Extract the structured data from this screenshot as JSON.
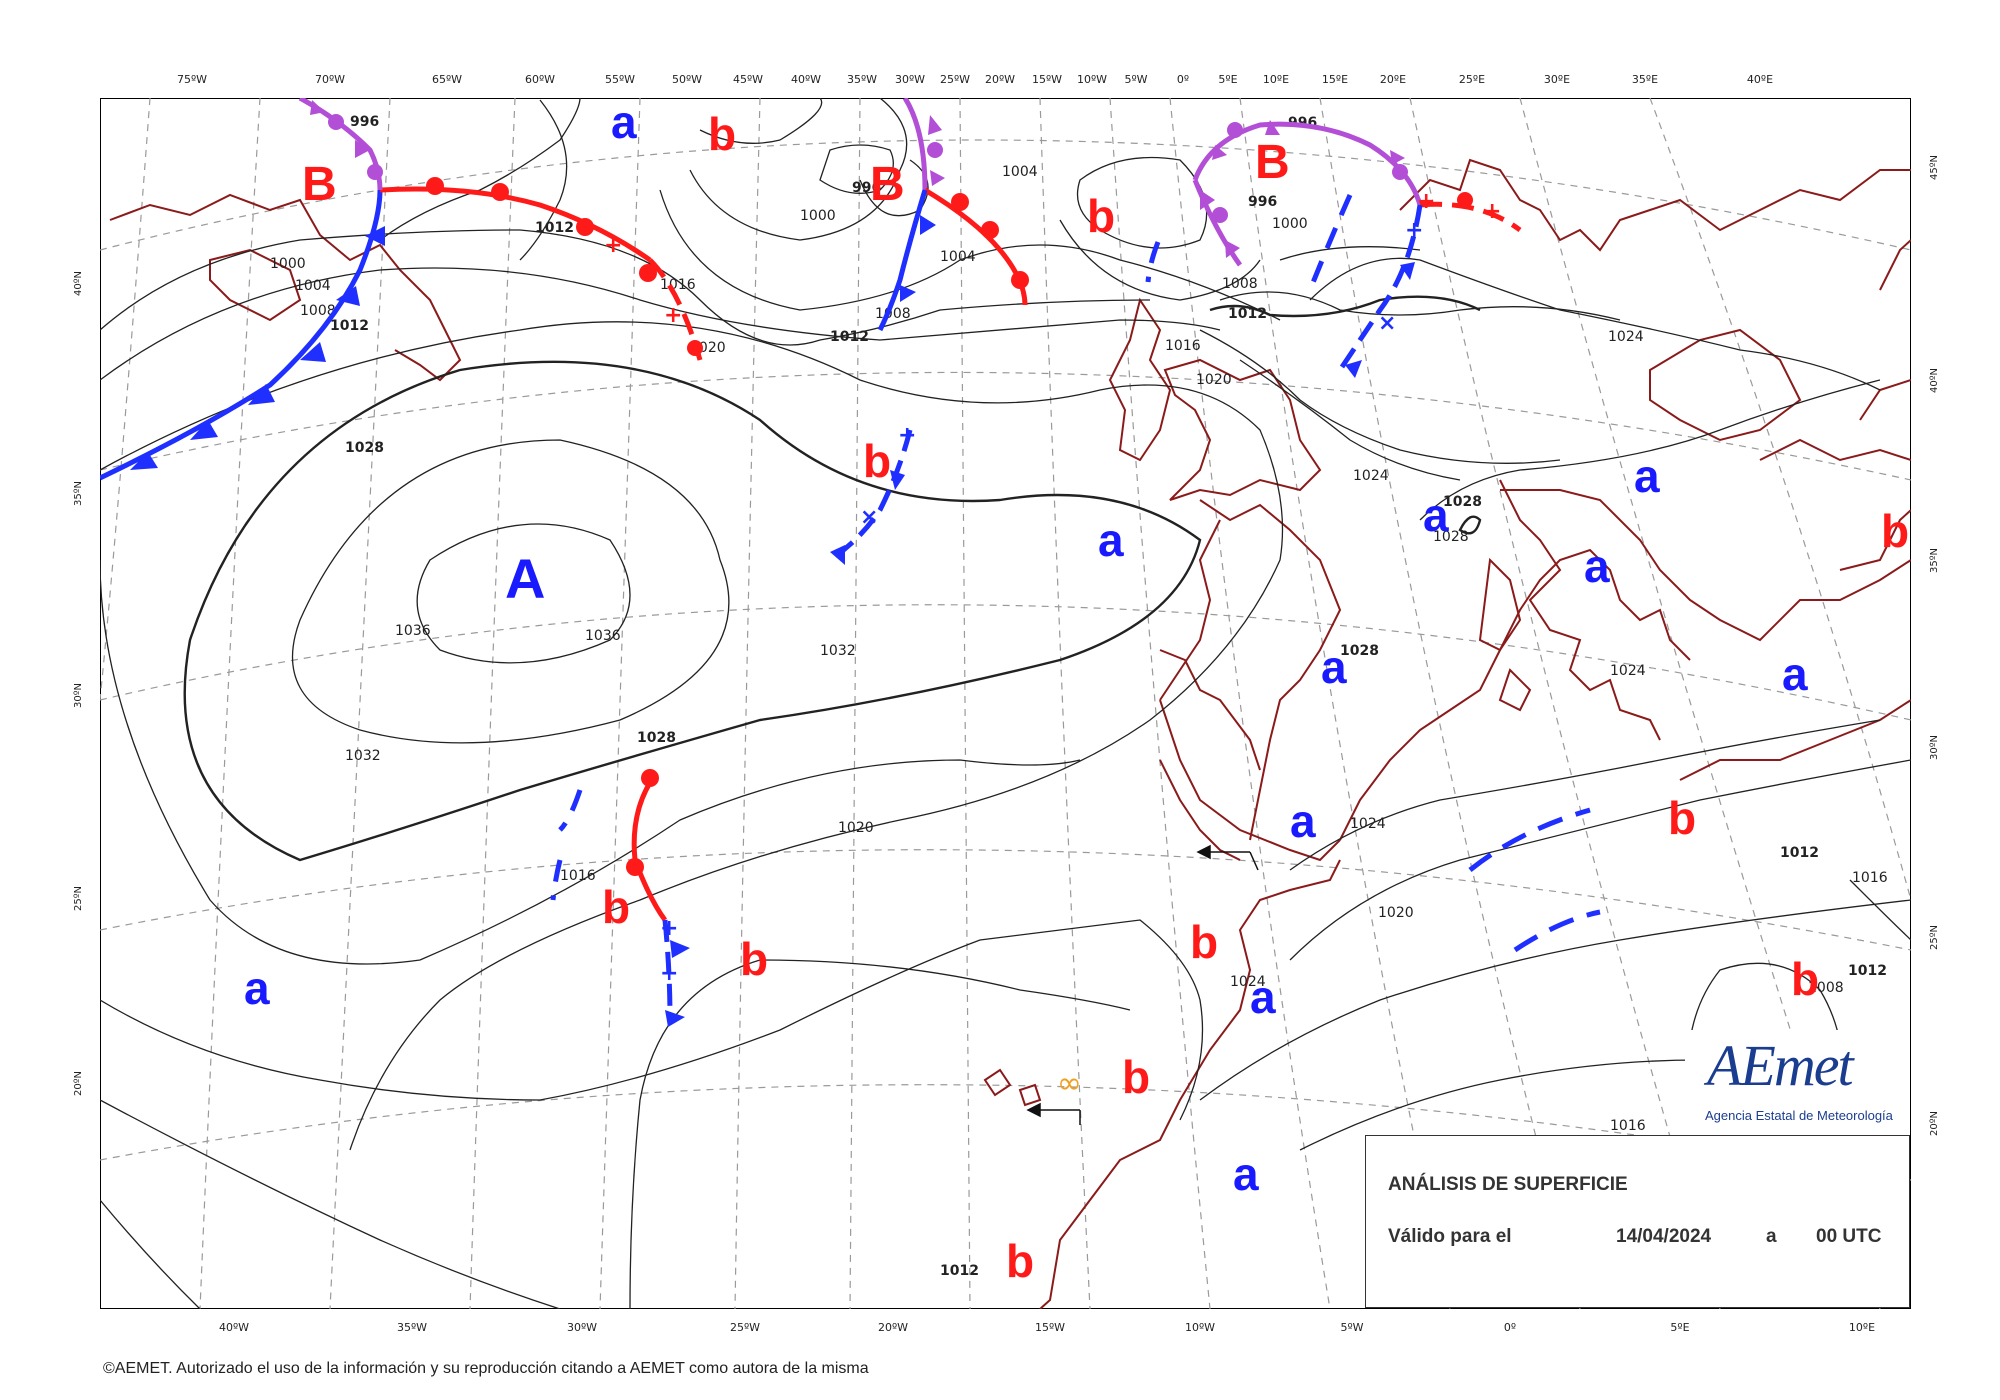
{
  "map": {
    "top_lon_labels": [
      "75ºW",
      "70ºW",
      "65ºW",
      "60ºW",
      "55ºW",
      "50ºW",
      "45ºW",
      "40ºW",
      "35ºW",
      "30ºW",
      "25ºW",
      "20ºW",
      "15ºW",
      "10ºW",
      "5ºW",
      "0º",
      "5ºE",
      "10ºE",
      "15ºE",
      "20ºE",
      "25ºE",
      "30ºE",
      "35ºE",
      "40ºE"
    ],
    "bottom_lon_labels": [
      "40ºW",
      "35ºW",
      "30ºW",
      "25ºW",
      "20ºW",
      "15ºW",
      "10ºW",
      "5ºW",
      "0º",
      "5ºE",
      "10ºE"
    ],
    "left_lat_labels": [
      "40ºN",
      "35ºN",
      "30ºN",
      "25ºN",
      "20ºN"
    ],
    "right_lat_labels": [
      "45ºN",
      "40ºN",
      "35ºN",
      "30ºN",
      "25ºN",
      "20ºN"
    ],
    "pressure_systems": [
      {
        "symbol": "A",
        "kind": "high",
        "color": "#1a1aff"
      },
      {
        "symbol": "B",
        "kind": "low",
        "color": "#ff1a1a"
      },
      {
        "symbol": "B",
        "kind": "low",
        "color": "#ff1a1a"
      },
      {
        "symbol": "B",
        "kind": "low",
        "color": "#ff1a1a"
      },
      {
        "symbol": "a",
        "kind": "relative-high",
        "color": "#1a1aff"
      },
      {
        "symbol": "b",
        "kind": "relative-low",
        "color": "#ff1a1a"
      }
    ],
    "isobar_labels": [
      "996",
      "1000",
      "1004",
      "1008",
      "1012",
      "1016",
      "1020",
      "1024",
      "1028",
      "1032",
      "1036"
    ],
    "colors": {
      "cold_front": "#1e2fff",
      "warm_front": "#ff1a1a",
      "occluded_front": "#b24fd6",
      "coast": "#8b1a1a",
      "isobar": "#222222",
      "grid": "#9a9a9a"
    }
  },
  "legend": {
    "title": "ANÁLISIS DE SUPERFICIE",
    "valid_label": "Válido para el",
    "date": "14/04/2024",
    "connector": "a",
    "time": "00 UTC"
  },
  "logo": {
    "wordmark": "AEmet",
    "subtitle": "Agencia Estatal de Meteorología"
  },
  "copyright": "©AEMET. Autorizado el uso de la información y su reproducción citando a AEMET como autora de la misma"
}
